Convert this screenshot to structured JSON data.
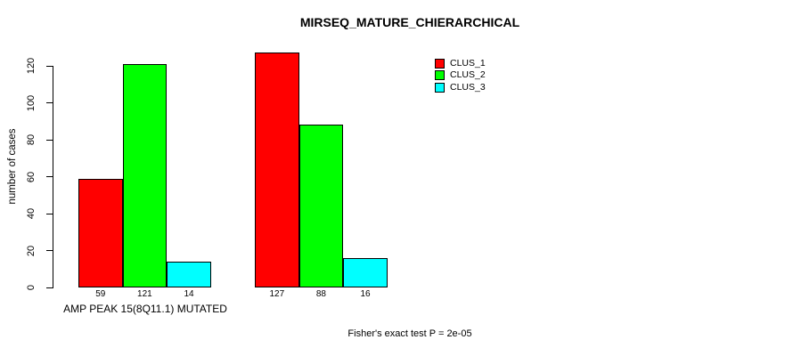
{
  "chart_data": {
    "type": "bar",
    "title": "MIRSEQ_MATURE_CHIERARCHICAL",
    "ylabel": "number of cases",
    "xlabel": "AMP PEAK 15(8Q11.1) MUTATED",
    "annotation": "Fisher's exact test P = 2e-05",
    "ylim": [
      0,
      120
    ],
    "yticks": [
      0,
      20,
      40,
      60,
      80,
      100,
      120
    ],
    "grid": false,
    "legend_position": "top-right",
    "bar_value_labels_shown": true,
    "group_labels": [
      "",
      ""
    ],
    "series": [
      {
        "name": "CLUS_1",
        "color": "#ff0000",
        "values": [
          59,
          127
        ]
      },
      {
        "name": "CLUS_2",
        "color": "#00ff00",
        "values": [
          121,
          88
        ]
      },
      {
        "name": "CLUS_3",
        "color": "#00ffff",
        "values": [
          14,
          16
        ]
      }
    ]
  }
}
